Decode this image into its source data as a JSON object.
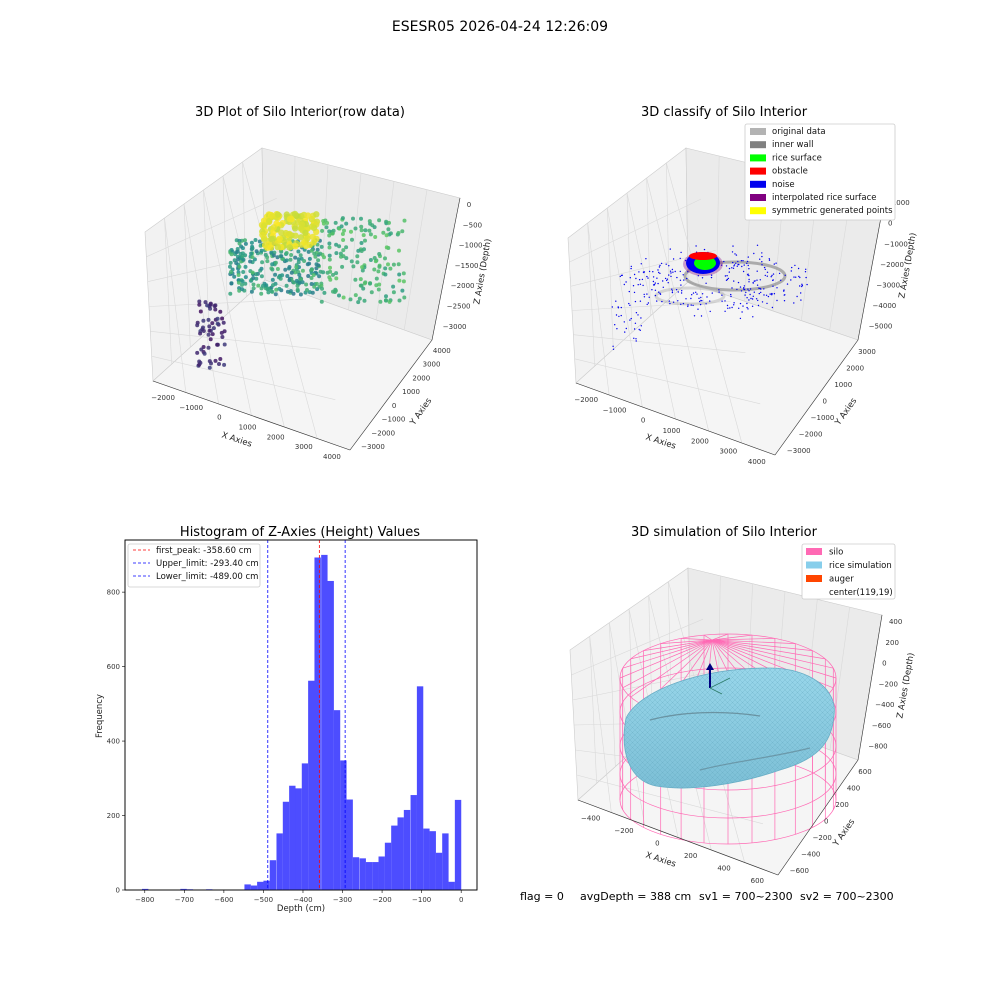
{
  "figure": {
    "suptitle": "ESESR05 2026-04-24 12:26:09",
    "footer": {
      "flag": "flag = 0",
      "avg_depth": "avgDepth = 388 cm",
      "sv1": "sv1 = 700~2300",
      "sv2": "sv2 = 700~2300"
    }
  },
  "chart_data": [
    {
      "type": "scatter",
      "projection": "3d",
      "title": "3D Plot of Silo Interior(row data)",
      "xlabel": "X Axies",
      "ylabel": "Y Axies",
      "zlabel": "Z Axies (Depth)",
      "xticks": [
        "−2000",
        "−1000",
        "0",
        "1000",
        "2000",
        "3000",
        "4000"
      ],
      "yticks": [
        "−3000",
        "−2000",
        "−1000",
        "0",
        "1000",
        "2000",
        "3000",
        "4000"
      ],
      "zticks": [
        "0",
        "−500",
        "−1000",
        "−1500",
        "−2000",
        "−2500",
        "−3000"
      ],
      "colormap": "viridis",
      "grid": true
    },
    {
      "type": "scatter",
      "projection": "3d",
      "title": "3D classify of Silo Interior",
      "xlabel": "X Axies",
      "ylabel": "Y Axies",
      "zlabel": "Z Axies (Depth)",
      "xticks": [
        "−2000",
        "−1000",
        "0",
        "1000",
        "2000",
        "3000",
        "4000"
      ],
      "yticks": [
        "−3000",
        "−2000",
        "−1000",
        "0",
        "1000",
        "2000",
        "3000"
      ],
      "zticks": [
        "1000",
        "0",
        "−1000",
        "−2000",
        "−3000",
        "−4000",
        "−5000"
      ],
      "legend_position": "top-right",
      "legend": [
        {
          "label": "original data",
          "color": "#b3b3b3"
        },
        {
          "label": "inner wall",
          "color": "#808080"
        },
        {
          "label": "rice surface",
          "color": "#00ff00"
        },
        {
          "label": "obstacle",
          "color": "#ff0000"
        },
        {
          "label": "noise",
          "color": "#0000ee"
        },
        {
          "label": "interpolated rice surface",
          "color": "#800080"
        },
        {
          "label": "symmetric generated points",
          "color": "#ffff00"
        }
      ],
      "grid": true
    },
    {
      "type": "bar",
      "title": "Histogram of Z-Axies (Height) Values",
      "xlabel": "Depth (cm)",
      "ylabel": "Frequency",
      "xlim": [
        -850,
        40
      ],
      "ylim": [
        0,
        940
      ],
      "xticks": [
        -800,
        -700,
        -600,
        -500,
        -400,
        -300,
        -200,
        -100,
        0
      ],
      "xtick_labels": [
        "−800",
        "−700",
        "−600",
        "−500",
        "−400",
        "−300",
        "−200",
        "−100",
        "0"
      ],
      "yticks": [
        0,
        200,
        400,
        600,
        800
      ],
      "bar_color": "#4d4dff",
      "bin_width": 16.15,
      "bins": [
        [
          -807,
          3
        ],
        [
          -710,
          3
        ],
        [
          -694,
          2
        ],
        [
          -645,
          2
        ],
        [
          -548,
          15
        ],
        [
          -532,
          12
        ],
        [
          -516,
          22
        ],
        [
          -500,
          25
        ],
        [
          -484,
          80
        ],
        [
          -467,
          152
        ],
        [
          -451,
          237
        ],
        [
          -435,
          280
        ],
        [
          -419,
          273
        ],
        [
          -403,
          340
        ],
        [
          -387,
          562
        ],
        [
          -371,
          893
        ],
        [
          -354,
          900
        ],
        [
          -338,
          830
        ],
        [
          -322,
          483
        ],
        [
          -306,
          348
        ],
        [
          -290,
          243
        ],
        [
          -274,
          88
        ],
        [
          -257,
          85
        ],
        [
          -241,
          75
        ],
        [
          -225,
          75
        ],
        [
          -209,
          90
        ],
        [
          -193,
          127
        ],
        [
          -177,
          173
        ],
        [
          -161,
          195
        ],
        [
          -145,
          215
        ],
        [
          -128,
          255
        ],
        [
          -112,
          547
        ],
        [
          -96,
          165
        ],
        [
          -80,
          158
        ],
        [
          -64,
          100
        ],
        [
          -48,
          152
        ],
        [
          -32,
          22
        ],
        [
          -16,
          242
        ]
      ],
      "vlines": [
        {
          "x": -358.6,
          "color": "#ff0000",
          "label": "first_peak: -358.60 cm"
        },
        {
          "x": -293.4,
          "color": "#0000ff",
          "label": "Upper_limit: -293.40 cm"
        },
        {
          "x": -489.0,
          "color": "#0000ff",
          "label": "Lower_limit: -489.00 cm"
        }
      ],
      "legend_position": "top-left",
      "grid": false
    },
    {
      "type": "area",
      "projection": "3d",
      "title": "3D simulation of Silo Interior",
      "xlabel": "X Axies",
      "ylabel": "Y Axies",
      "zlabel": "Z Axies (Depth)",
      "xticks": [
        "−400",
        "−200",
        "0",
        "200",
        "400",
        "600"
      ],
      "yticks": [
        "−600",
        "−400",
        "−200",
        "0",
        "200",
        "400",
        "600"
      ],
      "zticks": [
        "400",
        "200",
        "0",
        "−200",
        "−400",
        "−600",
        "−800"
      ],
      "legend_position": "top-right",
      "legend": [
        {
          "label": "silo",
          "color": "#ff69b4"
        },
        {
          "label": "rice simulation",
          "color": "#87ceeb"
        },
        {
          "label": "auger",
          "color": "#ff4500"
        },
        {
          "label": "center(119,19)",
          "color": "none"
        }
      ],
      "grid": true
    }
  ]
}
